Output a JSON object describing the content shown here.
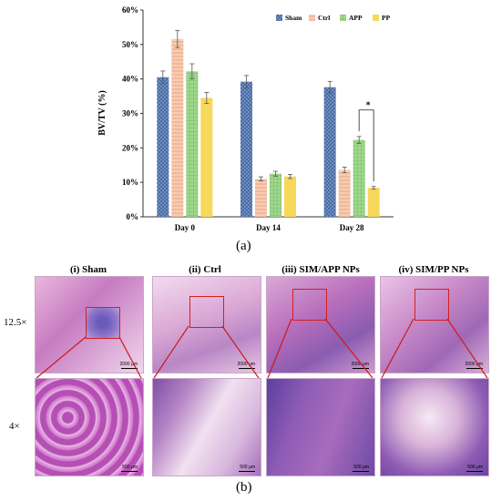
{
  "chart_data": {
    "type": "bar",
    "categories": [
      "Day 0",
      "Day 14",
      "Day 28"
    ],
    "series": [
      {
        "name": "Sham",
        "values": [
          40.5,
          39.2,
          37.6
        ],
        "errors": [
          1.8,
          1.8,
          1.7
        ],
        "color": "#5b7fb4"
      },
      {
        "name": "Ctrl",
        "values": [
          51.6,
          11.0,
          13.6
        ],
        "errors": [
          2.5,
          0.6,
          0.8
        ],
        "color": "#f2b99a"
      },
      {
        "name": "APP",
        "values": [
          42.2,
          12.5,
          22.3
        ],
        "errors": [
          2.2,
          0.7,
          1.0
        ],
        "color": "#8fce7f"
      },
      {
        "name": "PP",
        "values": [
          34.5,
          11.7,
          8.4
        ],
        "errors": [
          1.6,
          0.6,
          0.4
        ],
        "color": "#f6d85a"
      }
    ],
    "ylabel": "BV/TV (%)",
    "xlabel": "",
    "ylim": [
      0,
      60
    ],
    "yticks": [
      "0%",
      "10%",
      "20%",
      "30%",
      "40%",
      "50%",
      "60%"
    ],
    "grid": false,
    "legend_position": "top-right",
    "annotation": "*"
  },
  "labels": {
    "panel_a": "(a)",
    "panel_b": "(b)"
  },
  "histology": {
    "columns": [
      "(i) Sham",
      "(ii) Ctrl",
      "(iii) SIM/APP NPs",
      "(iv) SIM/PP NPs"
    ],
    "rows": [
      "12.5×",
      "4×"
    ],
    "scale_top": "2000 μm",
    "scale_bottom": "500 μm"
  }
}
